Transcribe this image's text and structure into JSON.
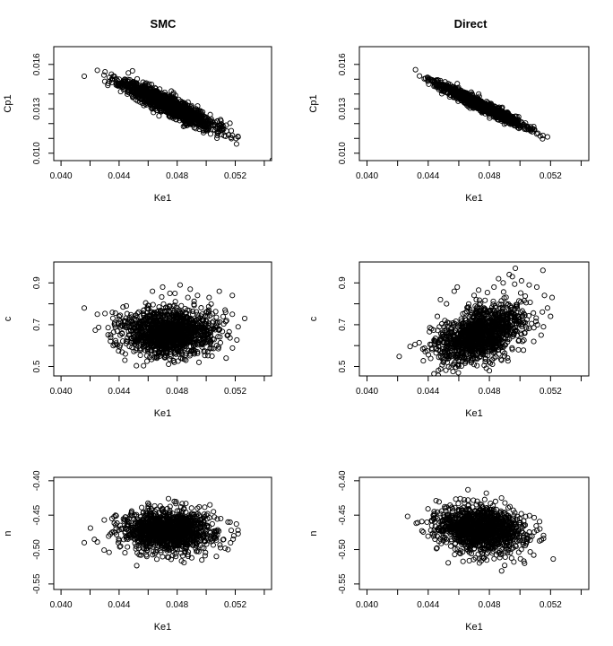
{
  "chart_data": [
    {
      "type": "scatter",
      "title": "SMC",
      "xlabel": "Ke1",
      "ylabel": "Cp1",
      "xlim": [
        0.0395,
        0.0545
      ],
      "ylim": [
        0.0095,
        0.0172
      ],
      "xticks": [
        "0.040",
        "0.044",
        "0.048",
        "0.052"
      ],
      "yticks": [
        "0.010",
        "0.013",
        "0.016"
      ],
      "xtick_values": [
        0.04,
        0.044,
        0.048,
        0.052
      ],
      "ytick_values": [
        0.01,
        0.013,
        0.016
      ],
      "minor_xticks": [
        0.042,
        0.046,
        0.05,
        0.054
      ],
      "minor_yticks": [
        0.011,
        0.012,
        0.014,
        0.015
      ],
      "marker": "open-circle",
      "points": [
        [
          0.0416,
          0.0152
        ],
        [
          0.0425,
          0.0156
        ],
        [
          0.0436,
          0.0152
        ],
        [
          0.044,
          0.015
        ],
        [
          0.0438,
          0.0146
        ],
        [
          0.0443,
          0.0148
        ],
        [
          0.0446,
          0.0147
        ],
        [
          0.0448,
          0.0145
        ],
        [
          0.045,
          0.0146
        ],
        [
          0.0452,
          0.0143
        ],
        [
          0.0455,
          0.0144
        ],
        [
          0.0454,
          0.014
        ],
        [
          0.0457,
          0.0141
        ],
        [
          0.0459,
          0.0142
        ],
        [
          0.046,
          0.0139
        ],
        [
          0.0462,
          0.014
        ],
        [
          0.0464,
          0.0137
        ],
        [
          0.0465,
          0.0141
        ],
        [
          0.0467,
          0.0136
        ],
        [
          0.0468,
          0.0139
        ],
        [
          0.047,
          0.0134
        ],
        [
          0.0471,
          0.0138
        ],
        [
          0.0472,
          0.0131
        ],
        [
          0.0474,
          0.0135
        ],
        [
          0.0475,
          0.0138
        ],
        [
          0.0477,
          0.0133
        ],
        [
          0.0478,
          0.0129
        ],
        [
          0.048,
          0.0134
        ],
        [
          0.0481,
          0.0128
        ],
        [
          0.0483,
          0.0131
        ],
        [
          0.0485,
          0.0126
        ],
        [
          0.0486,
          0.013
        ],
        [
          0.0488,
          0.0124
        ],
        [
          0.049,
          0.0127
        ],
        [
          0.0492,
          0.0121
        ],
        [
          0.0494,
          0.0124
        ],
        [
          0.0496,
          0.0119
        ],
        [
          0.0498,
          0.0122
        ],
        [
          0.05,
          0.0118
        ],
        [
          0.0502,
          0.012
        ],
        [
          0.0505,
          0.0116
        ],
        [
          0.0508,
          0.0118
        ],
        [
          0.0511,
          0.0116
        ],
        [
          0.0514,
          0.0115
        ],
        [
          0.0518,
          0.0112
        ],
        [
          0.0522,
          0.0111
        ],
        [
          0.0449,
          0.0139
        ],
        [
          0.0458,
          0.0147
        ],
        [
          0.0463,
          0.0132
        ],
        [
          0.0476,
          0.0142
        ],
        [
          0.0487,
          0.0119
        ],
        [
          0.0493,
          0.013
        ],
        [
          0.0503,
          0.0113
        ],
        [
          0.0469,
          0.0128
        ]
      ],
      "cloud": {
        "n": 1400,
        "seed": 11,
        "xmean": 0.0474,
        "xsd": 0.00155,
        "slope": -0.45,
        "ymean": 0.01325,
        "ysd": 0.00032
      }
    },
    {
      "type": "scatter",
      "title": "Direct",
      "xlabel": "Ke1",
      "ylabel": "Cp1",
      "xlim": [
        0.0395,
        0.0545
      ],
      "ylim": [
        0.0095,
        0.0172
      ],
      "xticks": [
        "0.040",
        "0.044",
        "0.048",
        "0.052"
      ],
      "yticks": [
        "0.010",
        "0.013",
        "0.016"
      ],
      "xtick_values": [
        0.04,
        0.044,
        0.048,
        0.052
      ],
      "ytick_values": [
        0.01,
        0.013,
        0.016
      ],
      "minor_xticks": [
        0.042,
        0.046,
        0.05,
        0.054
      ],
      "minor_yticks": [
        0.011,
        0.012,
        0.014,
        0.015
      ],
      "marker": "open-circle",
      "points": [
        [
          0.0444,
          0.0148
        ],
        [
          0.0448,
          0.0149
        ],
        [
          0.045,
          0.0146
        ],
        [
          0.0453,
          0.0147
        ],
        [
          0.0456,
          0.0145
        ],
        [
          0.046,
          0.0143
        ],
        [
          0.0463,
          0.0141
        ],
        [
          0.0467,
          0.0139
        ],
        [
          0.0471,
          0.0136
        ],
        [
          0.0475,
          0.0133
        ],
        [
          0.0479,
          0.0131
        ],
        [
          0.0483,
          0.0128
        ],
        [
          0.0487,
          0.0126
        ],
        [
          0.0491,
          0.0123
        ],
        [
          0.0495,
          0.0121
        ],
        [
          0.0499,
          0.0119
        ],
        [
          0.0503,
          0.0117
        ],
        [
          0.0507,
          0.0115
        ],
        [
          0.0511,
          0.0113
        ],
        [
          0.0515,
          0.0112
        ],
        [
          0.0518,
          0.0111
        ],
        [
          0.0447,
          0.0143
        ],
        [
          0.0459,
          0.0147
        ],
        [
          0.0473,
          0.014
        ],
        [
          0.0485,
          0.0124
        ],
        [
          0.0497,
          0.0125
        ],
        [
          0.0509,
          0.0118
        ]
      ],
      "cloud": {
        "n": 1200,
        "seed": 23,
        "xmean": 0.0474,
        "xsd": 0.00135,
        "slope": -0.5,
        "ymean": 0.01325,
        "ysd": 0.00018
      }
    },
    {
      "type": "scatter",
      "title": "",
      "xlabel": "Ke1",
      "ylabel": "c",
      "xlim": [
        0.0395,
        0.0545
      ],
      "ylim": [
        0.455,
        1.0
      ],
      "xticks": [
        "0.040",
        "0.044",
        "0.048",
        "0.052"
      ],
      "yticks": [
        "0.5",
        "0.7",
        "0.9"
      ],
      "xtick_values": [
        0.04,
        0.044,
        0.048,
        0.052
      ],
      "ytick_values": [
        0.5,
        0.7,
        0.9
      ],
      "minor_xticks": [
        0.042,
        0.046,
        0.05,
        0.054
      ],
      "minor_yticks": [
        0.6,
        0.8
      ],
      "marker": "open-circle",
      "points": [
        [
          0.0416,
          0.78
        ],
        [
          0.0425,
          0.75
        ],
        [
          0.0436,
          0.6
        ],
        [
          0.0437,
          0.71
        ],
        [
          0.044,
          0.74
        ],
        [
          0.0442,
          0.66
        ],
        [
          0.0445,
          0.79
        ],
        [
          0.0463,
          0.86
        ],
        [
          0.047,
          0.88
        ],
        [
          0.0475,
          0.85
        ],
        [
          0.0482,
          0.89
        ],
        [
          0.0489,
          0.87
        ],
        [
          0.0494,
          0.84
        ],
        [
          0.0502,
          0.83
        ],
        [
          0.0509,
          0.86
        ],
        [
          0.0513,
          0.77
        ],
        [
          0.0514,
          0.72
        ],
        [
          0.0515,
          0.65
        ],
        [
          0.0518,
          0.84
        ],
        [
          0.0522,
          0.69
        ],
        [
          0.0518,
          0.75
        ],
        [
          0.0466,
          0.54
        ],
        [
          0.0478,
          0.52
        ],
        [
          0.0486,
          0.53
        ],
        [
          0.0495,
          0.52
        ],
        [
          0.0504,
          0.55
        ]
      ],
      "cloud": {
        "n": 1400,
        "seed": 37,
        "xmean": 0.0474,
        "xsd": 0.00155,
        "slope": 0,
        "ymean": 0.665,
        "ysd": 0.055
      }
    },
    {
      "type": "scatter",
      "title": "",
      "xlabel": "Ke1",
      "ylabel": "c",
      "xlim": [
        0.0395,
        0.0545
      ],
      "ylim": [
        0.455,
        1.0
      ],
      "xticks": [
        "0.040",
        "0.044",
        "0.048",
        "0.052"
      ],
      "yticks": [
        "0.5",
        "0.7",
        "0.9"
      ],
      "xtick_values": [
        0.04,
        0.044,
        0.048,
        0.052
      ],
      "ytick_values": [
        0.5,
        0.7,
        0.9
      ],
      "minor_xticks": [
        0.042,
        0.046,
        0.05,
        0.054
      ],
      "minor_yticks": [
        0.6,
        0.8
      ],
      "marker": "open-circle",
      "points": [
        [
          0.0444,
          0.61
        ],
        [
          0.0446,
          0.74
        ],
        [
          0.0448,
          0.82
        ],
        [
          0.0452,
          0.8
        ],
        [
          0.0457,
          0.86
        ],
        [
          0.0459,
          0.88
        ],
        [
          0.047,
          0.84
        ],
        [
          0.0483,
          0.88
        ],
        [
          0.0486,
          0.92
        ],
        [
          0.0489,
          0.9
        ],
        [
          0.0493,
          0.94
        ],
        [
          0.0495,
          0.93
        ],
        [
          0.0497,
          0.97
        ],
        [
          0.0501,
          0.91
        ],
        [
          0.0506,
          0.89
        ],
        [
          0.0511,
          0.88
        ],
        [
          0.0515,
          0.96
        ],
        [
          0.0516,
          0.84
        ],
        [
          0.0518,
          0.78
        ],
        [
          0.052,
          0.74
        ],
        [
          0.0521,
          0.83
        ],
        [
          0.048,
          0.48
        ],
        [
          0.0488,
          0.53
        ],
        [
          0.047,
          0.51
        ],
        [
          0.0499,
          0.58
        ],
        [
          0.0509,
          0.62
        ]
      ],
      "cloud": {
        "n": 1300,
        "seed": 41,
        "xmean": 0.0474,
        "xsd": 0.0014,
        "slope": 22,
        "ymean": 0.655,
        "ysd": 0.06
      }
    },
    {
      "type": "scatter",
      "title": "",
      "xlabel": "Ke1",
      "ylabel": "n",
      "xlim": [
        0.0395,
        0.0545
      ],
      "ylim": [
        -0.558,
        -0.395
      ],
      "xticks": [
        "0.040",
        "0.044",
        "0.048",
        "0.052"
      ],
      "yticks": [
        "-0.55",
        "-0.50",
        "-0.45",
        "-0.40"
      ],
      "xtick_values": [
        0.04,
        0.044,
        0.048,
        0.052
      ],
      "ytick_values": [
        -0.55,
        -0.5,
        -0.45,
        -0.4
      ],
      "minor_xticks": [
        0.042,
        0.046,
        0.05,
        0.054
      ],
      "minor_yticks": [],
      "marker": "open-circle",
      "points": [
        [
          0.0416,
          -0.49
        ],
        [
          0.0425,
          -0.489
        ],
        [
          0.0435,
          -0.475
        ],
        [
          0.0438,
          -0.451
        ],
        [
          0.0441,
          -0.495
        ],
        [
          0.046,
          -0.44
        ],
        [
          0.0474,
          -0.426
        ],
        [
          0.0478,
          -0.43
        ],
        [
          0.0486,
          -0.433
        ],
        [
          0.0494,
          -0.44
        ],
        [
          0.051,
          -0.455
        ],
        [
          0.0515,
          -0.46
        ],
        [
          0.0519,
          -0.48
        ],
        [
          0.0522,
          -0.477
        ],
        [
          0.0515,
          -0.5
        ],
        [
          0.0507,
          -0.51
        ],
        [
          0.049,
          -0.512
        ],
        [
          0.0466,
          -0.514
        ],
        [
          0.0455,
          -0.508
        ]
      ],
      "cloud": {
        "n": 1400,
        "seed": 53,
        "xmean": 0.0474,
        "xsd": 0.00155,
        "slope": 0,
        "ymean": -0.473,
        "ysd": 0.0145
      }
    },
    {
      "type": "scatter",
      "title": "",
      "xlabel": "Ke1",
      "ylabel": "n",
      "xlim": [
        0.0395,
        0.0545
      ],
      "ylim": [
        -0.558,
        -0.395
      ],
      "xticks": [
        "0.040",
        "0.044",
        "0.048",
        "0.052"
      ],
      "yticks": [
        "-0.55",
        "-0.50",
        "-0.45",
        "-0.40"
      ],
      "xtick_values": [
        0.04,
        0.044,
        0.048,
        0.052
      ],
      "ytick_values": [
        -0.55,
        -0.5,
        -0.45,
        -0.4
      ],
      "minor_xticks": [
        0.042,
        0.046,
        0.05,
        0.054
      ],
      "minor_yticks": [],
      "marker": "open-circle",
      "points": [
        [
          0.0444,
          -0.456
        ],
        [
          0.0447,
          -0.488
        ],
        [
          0.0451,
          -0.44
        ],
        [
          0.0461,
          -0.426
        ],
        [
          0.0466,
          -0.413
        ],
        [
          0.0478,
          -0.418
        ],
        [
          0.0484,
          -0.43
        ],
        [
          0.049,
          -0.523
        ],
        [
          0.0488,
          -0.531
        ],
        [
          0.0496,
          -0.518
        ],
        [
          0.0503,
          -0.52
        ],
        [
          0.0509,
          -0.508
        ],
        [
          0.0514,
          -0.486
        ],
        [
          0.0513,
          -0.47
        ],
        [
          0.0471,
          -0.512
        ],
        [
          0.0461,
          -0.506
        ]
      ],
      "cloud": {
        "n": 1300,
        "seed": 67,
        "xmean": 0.0474,
        "xsd": 0.0014,
        "slope": -2,
        "ymean": -0.471,
        "ysd": 0.0155
      }
    }
  ]
}
